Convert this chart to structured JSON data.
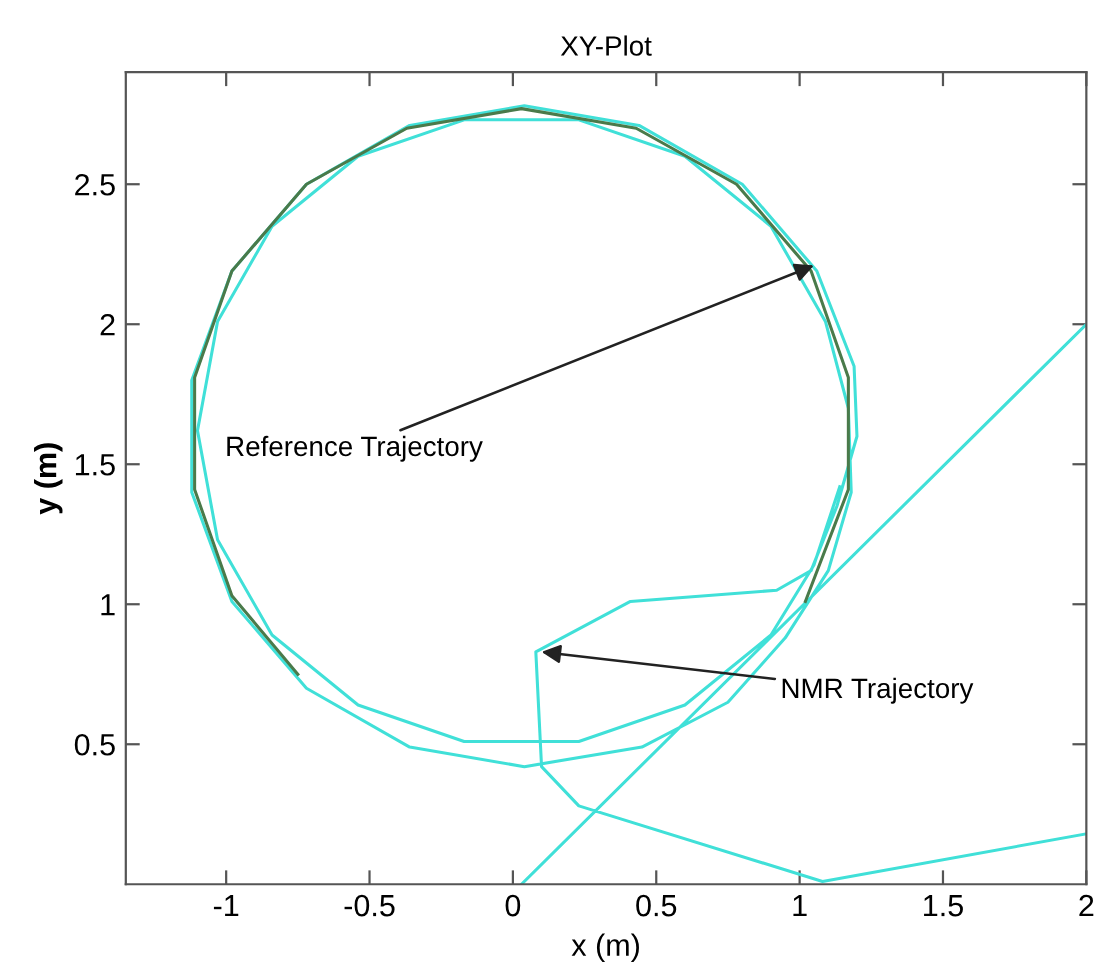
{
  "chart_data": {
    "type": "line",
    "title": "XY-Plot",
    "xlabel": "x (m)",
    "ylabel": "y (m)",
    "xlim": [
      -1.35,
      2
    ],
    "ylim": [
      0,
      2.9
    ],
    "xticks": [
      -1,
      -0.5,
      0,
      0.5,
      1,
      1.5,
      2
    ],
    "yticks": [
      0.5,
      1,
      1.5,
      2,
      2.5
    ],
    "grid": false,
    "legend": false,
    "marker": "none",
    "line_style": "solid",
    "series": [
      {
        "color": "#40e0d8",
        "x": [
          0.03,
          2,
          null,
          2,
          1.08,
          0.23,
          0.1,
          0.08,
          0.41,
          0.92,
          1.04,
          1.13,
          1.2,
          1.19,
          1.06,
          0.8,
          0.44,
          0.04,
          -0.36,
          -0.72,
          -0.98,
          -1.12,
          -1.12,
          -0.98,
          -0.72,
          -0.36,
          0.04,
          0.45,
          0.75,
          0.95,
          1.1,
          1.18,
          1.17,
          1.09,
          0.9,
          0.6,
          0.23,
          -0.17,
          -0.54,
          -0.84,
          -1.03,
          -1.1,
          -1.03,
          -0.84,
          -0.54,
          -0.17,
          0.23,
          0.6,
          0.9,
          1.05,
          1.14
        ],
        "values": [
          0,
          2,
          null,
          0.18,
          0.01,
          0.28,
          0.42,
          0.83,
          1.01,
          1.05,
          1.12,
          1.35,
          1.6,
          1.85,
          2.19,
          2.5,
          2.71,
          2.78,
          2.71,
          2.5,
          2.19,
          1.8,
          1.4,
          1.01,
          0.7,
          0.49,
          0.42,
          0.49,
          0.65,
          0.88,
          1.12,
          1.4,
          1.7,
          2.01,
          2.35,
          2.6,
          2.73,
          2.73,
          2.6,
          2.35,
          2.01,
          1.62,
          1.23,
          0.89,
          0.64,
          0.51,
          0.51,
          0.64,
          0.89,
          1.14,
          1.42
        ]
      },
      {
        "color": "#4a7a4a",
        "x": [
          1.02,
          1.17,
          1.17,
          1.04,
          0.78,
          0.43,
          0.03,
          -0.37,
          -0.72,
          -0.98,
          -1.11,
          -1.11,
          -0.98,
          -0.75
        ],
        "values": [
          1.01,
          1.41,
          1.81,
          2.19,
          2.5,
          2.7,
          2.77,
          2.7,
          2.5,
          2.19,
          1.81,
          1.41,
          1.03,
          0.75
        ]
      }
    ],
    "annotations": [
      {
        "text": "Reference Trajectory",
        "x": 1.05,
        "y": 2.21
      },
      {
        "text": "NMR Trajectory",
        "x": 0.1,
        "y": 0.83
      }
    ]
  }
}
